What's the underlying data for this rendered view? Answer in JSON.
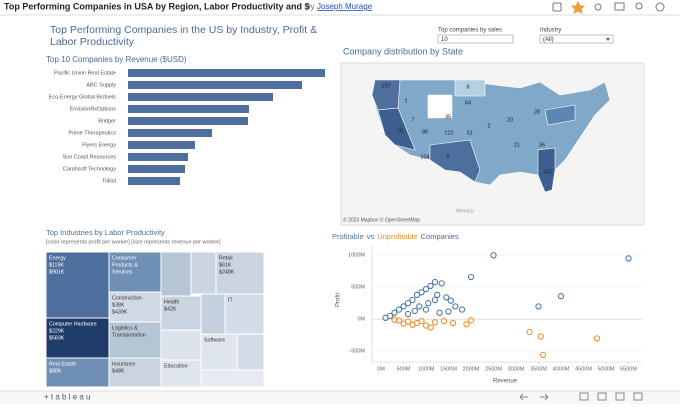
{
  "header": {
    "title": "Top Performing Companies in USA by Region, Labor Productivity and $",
    "by": "by",
    "author": "Joseph Murage"
  },
  "dashboard_title": "Top Performing Companies in the US by Industry, Profit & Labor Productivity",
  "filters": [
    {
      "label": "Top companies by sales",
      "value": "10"
    },
    {
      "label": "Industry",
      "value": "(All)"
    }
  ],
  "bar_chart": {
    "type": "bar",
    "title": "Top 10 Companies by Revenue ($USD)",
    "categories": [
      "Pacific Union Real Estate",
      "ABC Supply",
      "Eco-Energy Global Biofuels",
      "EnvisionRxOptions",
      "Bridger",
      "Prime Therapeutics",
      "Flyers Energy",
      "Sun Coast Resources",
      "Carahsoft Technology",
      "Trillist"
    ],
    "values": [
      19.7,
      17.4,
      14.5,
      12.1,
      12.0,
      8.4,
      6.7,
      6.0,
      5.7,
      5.2
    ],
    "xlim": [
      0,
      20
    ],
    "color": "#4e6e9e"
  },
  "map": {
    "title": "Company distribution by State",
    "labels": [
      107,
      1,
      6,
      64,
      35,
      28,
      7,
      20,
      2,
      31,
      86,
      122,
      51,
      104,
      6,
      21,
      36,
      307
    ],
    "attribution": "© 2023 Mapbox © OpenStreetMap",
    "country": "Mexico"
  },
  "treemap": {
    "title": "Top Industries by Labor Productivity",
    "subtitle": "[color represents profit per worker] [size represents revenue per worker]",
    "cells": [
      {
        "lines": [
          "Energy",
          "$119K",
          "$901K"
        ]
      },
      {
        "lines": [
          "Consumer",
          "Products &",
          "Services"
        ]
      },
      {
        "lines": [
          "Retail",
          "$61K",
          "$248K"
        ]
      },
      {
        "lines": [
          "Construction",
          "$38K",
          "$439K"
        ]
      },
      {
        "lines": [
          "Health",
          "$42K"
        ]
      },
      {
        "lines": [
          "IT"
        ]
      },
      {
        "lines": [
          "Computer Hardware",
          "$229K",
          "$583K"
        ]
      },
      {
        "lines": [
          "Logistics &",
          "Transportation"
        ]
      },
      {
        "lines": [
          "Real Estate",
          "$88K"
        ]
      },
      {
        "lines": [
          "Insurance",
          "$48K"
        ]
      },
      {
        "lines": [
          "Education"
        ]
      },
      {
        "lines": [
          "Software"
        ]
      }
    ]
  },
  "scatter": {
    "type": "scatter",
    "title_joiner": "vs",
    "title_tail": "Companies",
    "xlabel": "Revenue",
    "ylabel": "Profit",
    "xlim": [
      -200,
      5800
    ],
    "ylim": [
      -670,
      1160
    ],
    "xticks": [
      {
        "value": 0,
        "label": "0M"
      },
      {
        "value": 500,
        "label": "500M"
      },
      {
        "value": 1000,
        "label": "1000M"
      },
      {
        "value": 1500,
        "label": "1500M"
      },
      {
        "value": 2000,
        "label": "2000M"
      },
      {
        "value": 2500,
        "label": "2500M"
      },
      {
        "value": 3000,
        "label": "3000M"
      },
      {
        "value": 3500,
        "label": "3500M"
      },
      {
        "value": 4000,
        "label": "4000M"
      },
      {
        "value": 4500,
        "label": "4500M"
      },
      {
        "value": 5000,
        "label": "5000M"
      },
      {
        "value": 5500,
        "label": "5500M"
      }
    ],
    "yticks": [
      {
        "value": 1000,
        "label": "1000M"
      },
      {
        "value": 500,
        "label": "500M"
      },
      {
        "value": 0,
        "label": "0M"
      },
      {
        "value": -500,
        "label": "-500M"
      }
    ],
    "series": [
      {
        "name": "Profitable",
        "color": "#4e79a7",
        "x": [
          2500,
          5500,
          2000,
          4000,
          3500,
          1200,
          1350,
          1100,
          1000,
          900,
          800,
          1250,
          1450,
          1550,
          700,
          600,
          500,
          400,
          300,
          1200,
          1050,
          850,
          1650,
          1800,
          200,
          600,
          750,
          1000,
          1300,
          1500,
          100
        ],
        "y": [
          1000,
          950,
          660,
          360,
          200,
          580,
          560,
          520,
          470,
          420,
          380,
          380,
          340,
          290,
          300,
          250,
          200,
          150,
          100,
          300,
          250,
          200,
          200,
          150,
          50,
          80,
          130,
          150,
          100,
          120,
          20
        ]
      },
      {
        "name": "Unprofitable",
        "color": "#f28e2b",
        "x": [
          3600,
          4800,
          3300,
          3550,
          2000,
          1900,
          1000,
          800,
          600,
          400,
          1200,
          1400,
          300,
          700,
          500,
          900,
          1100,
          1600
        ],
        "y": [
          -560,
          -300,
          -200,
          -270,
          -20,
          -80,
          -100,
          -60,
          -40,
          -20,
          -50,
          -30,
          -10,
          -90,
          -70,
          -30,
          -130,
          -60
        ]
      }
    ]
  },
  "footer": {
    "logo": "+ t a b l e a u"
  }
}
